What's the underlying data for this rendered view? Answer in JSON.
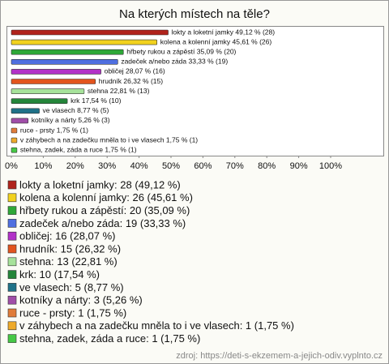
{
  "chart_data": {
    "type": "bar",
    "orientation": "horizontal",
    "title": "Na kterých místech na těle?",
    "categories": [
      "lokty a loketní jamky",
      "kolena a kolenní jamky",
      "hřbety rukou a zápěstí",
      "zadeček a/nebo záda",
      "obličej",
      "hrudník",
      "stehna",
      "krk",
      "ve vlasech",
      "kotníky a nárty",
      "ruce - prsty",
      "v záhybech a na zadečku mněla to i ve vlasech",
      "stehna, zadek, záda a ruce"
    ],
    "values": [
      49.12,
      45.61,
      35.09,
      33.33,
      28.07,
      26.32,
      22.81,
      17.54,
      8.77,
      5.26,
      1.75,
      1.75,
      1.75
    ],
    "counts": [
      28,
      26,
      20,
      19,
      16,
      15,
      13,
      10,
      5,
      3,
      1,
      1,
      1
    ],
    "value_labels": [
      "lokty a loketní jamky 49,12 % (28)",
      "kolena a kolenní jamky 45,61 % (26)",
      "hřbety rukou a zápěstí 35,09 % (20)",
      "zadeček a/nebo záda 33,33 % (19)",
      "obličej 28,07 % (16)",
      "hrudník 26,32 % (15)",
      "stehna 22,81 % (13)",
      "krk 17,54 % (10)",
      "ve vlasech 8,77 % (5)",
      "kotníky a nárty 5,26 % (3)",
      "ruce - prsty 1,75 % (1)",
      "v záhybech a na zadečku mněla to i ve vlasech 1,75 % (1)",
      "stehna, zadek, záda a ruce 1,75 % (1)"
    ],
    "legend_labels": [
      "lokty a loketní jamky: 28 (49,12 %)",
      "kolena a kolenní jamky: 26 (45,61 %)",
      "hřbety rukou a zápěstí: 20 (35,09 %)",
      "zadeček a/nebo záda: 19 (33,33 %)",
      "obličej: 16 (28,07 %)",
      "hrudník: 15 (26,32 %)",
      "stehna: 13 (22,81 %)",
      "krk: 10 (17,54 %)",
      "ve vlasech: 5 (8,77 %)",
      "kotníky a nárty: 3 (5,26 %)",
      "ruce - prsty: 1 (1,75 %)",
      "v záhybech a na zadečku mněla to i ve vlasech: 1 (1,75 %)",
      "stehna, zadek, záda a ruce: 1 (1,75 %)"
    ],
    "colors": [
      "#b0231c",
      "#f2d21e",
      "#2ea838",
      "#4f6fe0",
      "#b232c8",
      "#e2541e",
      "#a6e29a",
      "#24863a",
      "#1f7288",
      "#a04ea8",
      "#e07c3a",
      "#eeaa2a",
      "#46c846"
    ],
    "xlim": [
      0,
      100
    ],
    "xticks": [
      {
        "value": 0,
        "label": "0%"
      },
      {
        "value": 10,
        "label": "10%"
      },
      {
        "value": 20,
        "label": "20%"
      },
      {
        "value": 30,
        "label": "30%"
      },
      {
        "value": 40,
        "label": "40%"
      },
      {
        "value": 50,
        "label": "50%"
      },
      {
        "value": 60,
        "label": "60%"
      },
      {
        "value": 70,
        "label": "70%"
      },
      {
        "value": 80,
        "label": "80%"
      },
      {
        "value": 90,
        "label": "90%"
      },
      {
        "value": 100,
        "label": "100%"
      }
    ],
    "source": "zdroj: https://deti-s-ekzemem-a-jejich-odiv.vyplnto.cz"
  }
}
